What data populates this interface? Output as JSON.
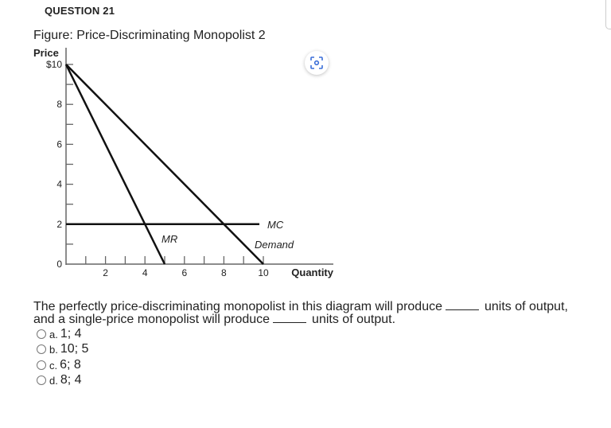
{
  "question_header": "QUESTION 21",
  "figure": {
    "title": "Figure: Price-Discriminating Monopolist 2",
    "y_axis_label": "Price",
    "x_axis_label": "Quantity",
    "y_ticks": [
      "$10",
      "8",
      "6",
      "4",
      "2",
      "0"
    ],
    "x_ticks": [
      "2",
      "4",
      "6",
      "8",
      "10"
    ],
    "curve_labels": {
      "mc": "MC",
      "mr": "MR",
      "demand": "Demand"
    },
    "curves": {
      "demand": [
        [
          0,
          10
        ],
        [
          10,
          0
        ]
      ],
      "mr": [
        [
          0,
          10
        ],
        [
          5,
          0
        ]
      ],
      "mc": [
        [
          0,
          2
        ],
        [
          9.8,
          2
        ]
      ]
    },
    "lens_icon": "visual-search-icon"
  },
  "question": {
    "line1_a": "The perfectly price-discriminating monopolist in this diagram will produce",
    "line1_b": "units of output,",
    "line2_a": "and a single-price monopolist will produce",
    "line2_b": "units of output."
  },
  "options": [
    {
      "letter": "a.",
      "text": "1; 4"
    },
    {
      "letter": "b.",
      "text": "10; 5"
    },
    {
      "letter": "c.",
      "text": "6; 8"
    },
    {
      "letter": "d.",
      "text": "8; 4"
    }
  ]
}
